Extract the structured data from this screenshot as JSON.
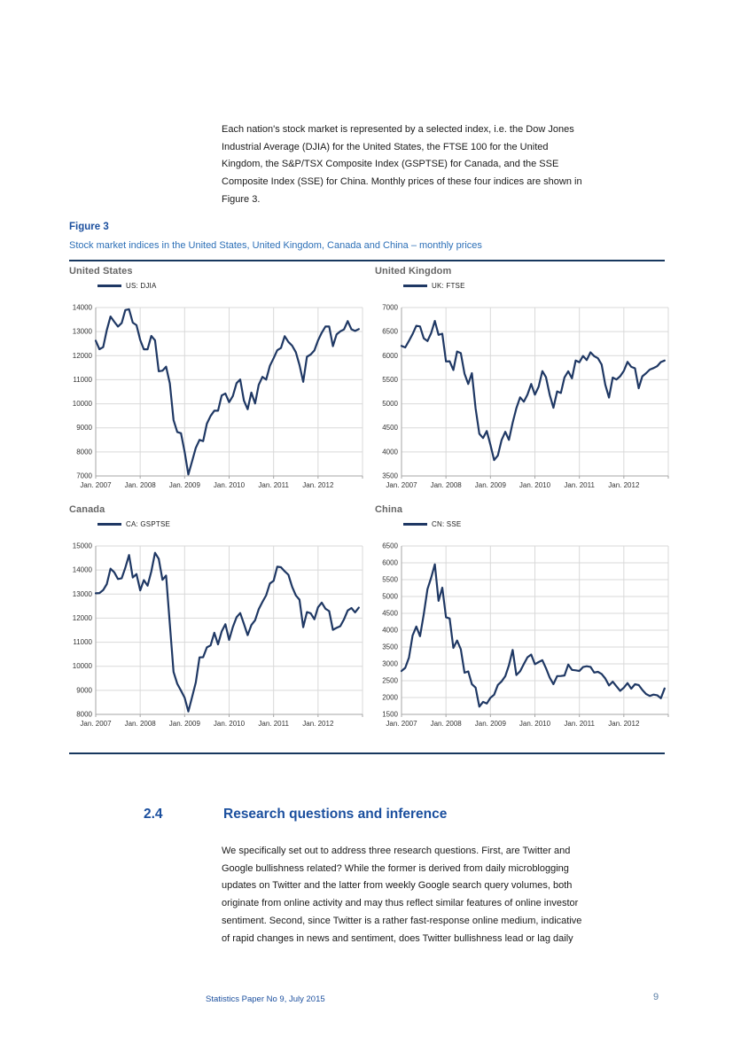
{
  "intro_paragraph": "Each nation's stock market is represented by a selected index, i.e. the Dow Jones\nIndustrial Average (DJIA) for the United States, the FTSE 100 for the United\nKingdom, the S&P/TSX Composite Index (GSPTSE) for Canada, and the SSE\nComposite Index (SSE) for China. Monthly prices of these four indices are shown in\nFigure 3.",
  "figure": {
    "label": "Figure 3",
    "title": "Stock market indices in the United States, United Kingdom, Canada and China – monthly prices"
  },
  "section": {
    "number": "2.4",
    "title": "Research questions and inference",
    "paragraph": "We specifically set out to address three research questions. First, are Twitter and\nGoogle bullishness related? While the former is derived from daily microblogging\nupdates on Twitter and the latter from weekly Google search query volumes, both\noriginate from online activity and may thus reflect similar features of online investor\nsentiment. Second, since Twitter is a rather fast-response online medium, indicative\nof rapid changes in news and sentiment, does Twitter bullishness lead or lag daily"
  },
  "footer": {
    "text": "Statistics Paper No 9, July 2015",
    "page_number": "9"
  },
  "colors": {
    "line_navy": "#1F3864",
    "rule_navy": "#17375E",
    "heading_blue": "#1B4F9E",
    "subtitle_blue": "#2C6FB7",
    "chart_title_gray": "#666666",
    "grid_gray": "#D9D9D9",
    "axis_gray": "#A6A6A6",
    "tick_label": "#333333",
    "page_number_gray_blue": "#5B7FA6"
  },
  "chart_data": [
    {
      "type": "line",
      "panel_title": "United States",
      "legend": "US: DJIA",
      "frequency": "monthly",
      "x_start": "2007-01",
      "x_end": "2012-12",
      "x_tick_labels": [
        "Jan. 2007",
        "Jan. 2008",
        "Jan. 2009",
        "Jan. 2010",
        "Jan. 2011",
        "Jan. 2012"
      ],
      "ylim": [
        7000,
        14000
      ],
      "ytick_step": 1000,
      "line_color": "#1F3864",
      "values": [
        12622,
        12269,
        12354,
        13063,
        13628,
        13409,
        13212,
        13358,
        13896,
        13930,
        13372,
        13265,
        12650,
        12266,
        12263,
        12820,
        12638,
        11350,
        11378,
        11544,
        10851,
        9325,
        8829,
        8776,
        8001,
        7063,
        7609,
        8168,
        8500,
        8447,
        9172,
        9496,
        9712,
        9713,
        10345,
        10428,
        10067,
        10325,
        10857,
        11009,
        10137,
        9774,
        10466,
        10015,
        10788,
        11118,
        11006,
        11578,
        11892,
        12226,
        12320,
        12811,
        12570,
        12414,
        12143,
        11614,
        10913,
        11955,
        12046,
        12218,
        12633,
        12952,
        13212,
        13214,
        12393,
        12880,
        13009,
        13091,
        13437,
        13096,
        13026,
        13104
      ]
    },
    {
      "type": "line",
      "panel_title": "United Kingdom",
      "legend": "UK: FTSE",
      "frequency": "monthly",
      "x_start": "2007-01",
      "x_end": "2012-12",
      "x_tick_labels": [
        "Jan. 2007",
        "Jan. 2008",
        "Jan. 2009",
        "Jan. 2010",
        "Jan. 2011",
        "Jan. 2012"
      ],
      "ylim": [
        3500,
        7000
      ],
      "ytick_step": 500,
      "line_color": "#1F3864",
      "values": [
        6203,
        6171,
        6308,
        6449,
        6621,
        6608,
        6360,
        6303,
        6467,
        6722,
        6432,
        6457,
        5880,
        5884,
        5702,
        6087,
        6054,
        5626,
        5412,
        5637,
        4902,
        4377,
        4288,
        4434,
        4149,
        3830,
        3926,
        4244,
        4418,
        4249,
        4608,
        4909,
        5134,
        5044,
        5191,
        5413,
        5189,
        5354,
        5680,
        5553,
        5188,
        4917,
        5258,
        5225,
        5549,
        5675,
        5528,
        5900,
        5863,
        5994,
        5909,
        6070,
        5990,
        5946,
        5815,
        5395,
        5128,
        5544,
        5505,
        5572,
        5682,
        5871,
        5768,
        5738,
        5321,
        5571,
        5635,
        5711,
        5742,
        5783,
        5867,
        5898
      ]
    },
    {
      "type": "line",
      "panel_title": "Canada",
      "legend": "CA: GSPTSE",
      "frequency": "monthly",
      "x_start": "2007-01",
      "x_end": "2012-12",
      "x_tick_labels": [
        "Jan. 2007",
        "Jan. 2008",
        "Jan. 2009",
        "Jan. 2010",
        "Jan. 2011",
        "Jan. 2012"
      ],
      "ylim": [
        8000,
        15000
      ],
      "ytick_step": 1000,
      "line_color": "#1F3864",
      "values": [
        13034,
        13045,
        13166,
        13417,
        14057,
        13907,
        13625,
        13660,
        14099,
        14625,
        13689,
        13833,
        13155,
        13583,
        13350,
        13937,
        14715,
        14467,
        13593,
        13771,
        11753,
        9763,
        9271,
        8988,
        8695,
        8123,
        8720,
        9325,
        10370,
        10375,
        10787,
        10868,
        11395,
        10911,
        11447,
        11746,
        11094,
        11630,
        12038,
        12211,
        11763,
        11294,
        11713,
        11914,
        12369,
        12676,
        12953,
        13443,
        13552,
        14137,
        14116,
        13945,
        13803,
        13301,
        12946,
        12769,
        11624,
        12252,
        12204,
        11955,
        12452,
        12644,
        12392,
        12293,
        11513,
        11597,
        11665,
        11949,
        12317,
        12422,
        12239,
        12434
      ]
    },
    {
      "type": "line",
      "panel_title": "China",
      "legend": "CN: SSE",
      "frequency": "monthly",
      "x_start": "2007-01",
      "x_end": "2012-12",
      "x_tick_labels": [
        "Jan. 2007",
        "Jan. 2008",
        "Jan. 2009",
        "Jan. 2010",
        "Jan. 2011",
        "Jan. 2012"
      ],
      "ylim": [
        1500,
        6500
      ],
      "ytick_step": 500,
      "line_color": "#1F3864",
      "values": [
        2786,
        2881,
        3184,
        3841,
        4109,
        3821,
        4471,
        5218,
        5552,
        5955,
        4871,
        5262,
        4383,
        4348,
        3473,
        3693,
        3433,
        2736,
        2776,
        2397,
        2294,
        1729,
        1871,
        1821,
        1991,
        2083,
        2373,
        2478,
        2633,
        2959,
        3412,
        2668,
        2779,
        2995,
        3195,
        3277,
        2989,
        3052,
        3109,
        2871,
        2592,
        2398,
        2638,
        2639,
        2656,
        2979,
        2820,
        2808,
        2790,
        2905,
        2928,
        2911,
        2743,
        2762,
        2701,
        2567,
        2359,
        2470,
        2333,
        2199,
        2292,
        2428,
        2262,
        2396,
        2372,
        2225,
        2104,
        2047,
        2086,
        2068,
        1980,
        2269
      ]
    }
  ]
}
